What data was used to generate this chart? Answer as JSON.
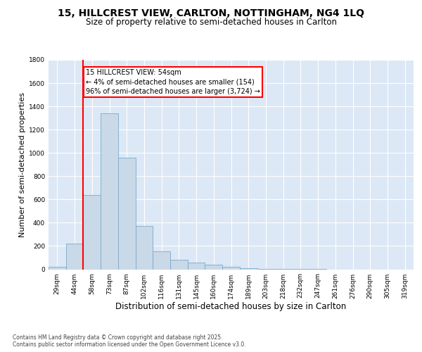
{
  "title_line1": "15, HILLCREST VIEW, CARLTON, NOTTINGHAM, NG4 1LQ",
  "title_line2": "Size of property relative to semi-detached houses in Carlton",
  "xlabel": "Distribution of semi-detached houses by size in Carlton",
  "ylabel": "Number of semi-detached properties",
  "bin_labels": [
    "29sqm",
    "44sqm",
    "58sqm",
    "73sqm",
    "87sqm",
    "102sqm",
    "116sqm",
    "131sqm",
    "145sqm",
    "160sqm",
    "174sqm",
    "189sqm",
    "203sqm",
    "218sqm",
    "232sqm",
    "247sqm",
    "261sqm",
    "276sqm",
    "290sqm",
    "305sqm",
    "319sqm"
  ],
  "bar_values": [
    20,
    220,
    640,
    1340,
    960,
    370,
    155,
    80,
    60,
    40,
    20,
    8,
    4,
    2,
    1,
    1,
    0,
    0,
    0,
    0,
    0
  ],
  "bar_color": "#c9d9e8",
  "bar_edge_color": "#7aaac8",
  "vline_color": "red",
  "annotation_text": "15 HILLCREST VIEW: 54sqm\n← 4% of semi-detached houses are smaller (154)\n96% of semi-detached houses are larger (3,724) →",
  "annotation_box_color": "white",
  "annotation_box_edge_color": "red",
  "ylim": [
    0,
    1800
  ],
  "yticks": [
    0,
    200,
    400,
    600,
    800,
    1000,
    1200,
    1400,
    1600,
    1800
  ],
  "background_color": "#dce8f5",
  "grid_color": "white",
  "footer_text": "Contains HM Land Registry data © Crown copyright and database right 2025.\nContains public sector information licensed under the Open Government Licence v3.0.",
  "title_fontsize": 10,
  "subtitle_fontsize": 8.5,
  "tick_fontsize": 6.5,
  "ylabel_fontsize": 8,
  "xlabel_fontsize": 8.5
}
